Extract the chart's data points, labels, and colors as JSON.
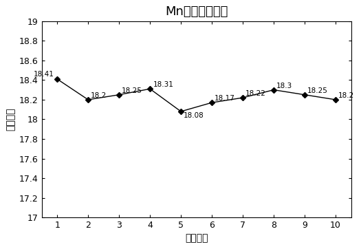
{
  "title": "Mn元素分析数据",
  "xlabel": "分析次数",
  "ylabel": "分析数值",
  "x": [
    1,
    2,
    3,
    4,
    5,
    6,
    7,
    8,
    9,
    10
  ],
  "y": [
    18.41,
    18.2,
    18.25,
    18.31,
    18.08,
    18.17,
    18.22,
    18.3,
    18.25,
    18.2
  ],
  "labels": [
    "18.41",
    "18.2",
    "18.25",
    "18.31",
    "18.08",
    "18.17",
    "18.22",
    "18.3",
    "18.25",
    "18.2"
  ],
  "label_ha": [
    "right",
    "left",
    "left",
    "left",
    "left",
    "left",
    "left",
    "left",
    "left",
    "left"
  ],
  "label_va": [
    "bottom",
    "bottom",
    "bottom",
    "bottom",
    "top",
    "bottom",
    "bottom",
    "bottom",
    "bottom",
    "bottom"
  ],
  "label_dx": [
    -0.1,
    0.08,
    0.08,
    0.1,
    0.08,
    0.08,
    0.08,
    0.08,
    0.08,
    0.08
  ],
  "label_dy": [
    0.01,
    0.005,
    0.005,
    0.005,
    -0.005,
    0.005,
    0.005,
    0.005,
    0.005,
    0.005
  ],
  "ylim": [
    17,
    19
  ],
  "yticks": [
    17,
    17.2,
    17.4,
    17.6,
    17.8,
    18,
    18.2,
    18.4,
    18.6,
    18.8,
    19
  ],
  "xlim": [
    0.5,
    10.5
  ],
  "xticks": [
    1,
    2,
    3,
    4,
    5,
    6,
    7,
    8,
    9,
    10
  ],
  "line_color": "#000000",
  "marker": "D",
  "marker_size": 4,
  "bg_color": "#ffffff",
  "font_size_title": 13,
  "font_size_label": 10,
  "font_size_tick": 9,
  "font_size_annot": 7.5
}
